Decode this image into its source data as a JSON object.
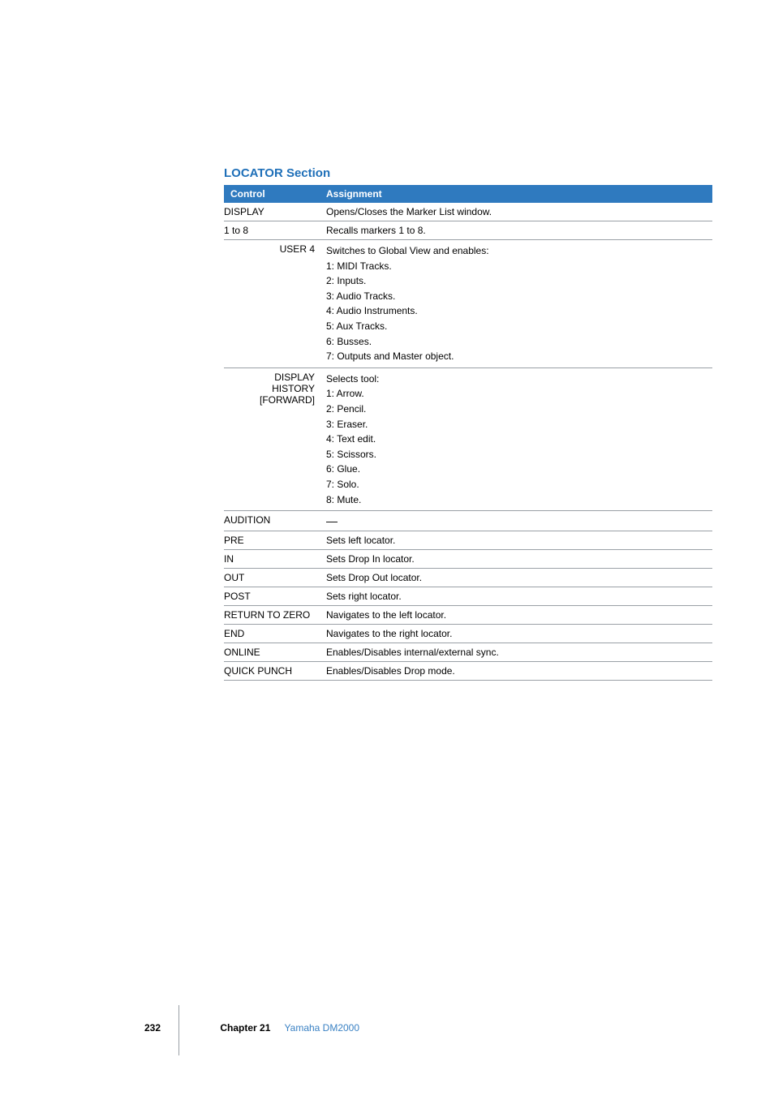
{
  "section": {
    "title": "LOCATOR Section",
    "title_color": "#1e6fb8",
    "title_fontsize": 15
  },
  "table": {
    "header_bg": "#2f7abf",
    "header_color": "#ffffff",
    "border_color": "#9aa0a6",
    "columns": [
      "Control",
      "Assignment"
    ],
    "rows": [
      {
        "control": "DISPLAY",
        "align": "left",
        "assignment": [
          "Opens/Closes the Marker List window."
        ]
      },
      {
        "control": "1 to 8",
        "align": "left",
        "assignment": [
          "Recalls markers 1 to 8."
        ]
      },
      {
        "control": "USER 4",
        "align": "right",
        "assignment": [
          "Switches to Global View and enables:",
          "1:  MIDI Tracks.",
          "2:  Inputs.",
          "3:  Audio Tracks.",
          "4:  Audio Instruments.",
          "5:  Aux Tracks.",
          "6:  Busses.",
          "7:  Outputs and Master object."
        ]
      },
      {
        "control": "DISPLAY HISTORY [FORWARD]",
        "align": "right",
        "assignment": [
          "Selects tool:",
          "1:  Arrow.",
          "2:  Pencil.",
          "3:  Eraser.",
          "4:  Text edit.",
          "5:  Scissors.",
          "6:  Glue.",
          "7:  Solo.",
          "8:  Mute."
        ]
      },
      {
        "control": "AUDITION",
        "align": "left",
        "assignment": [
          "—"
        ]
      },
      {
        "control": "PRE",
        "align": "left",
        "assignment": [
          "Sets left locator."
        ]
      },
      {
        "control": "IN",
        "align": "left",
        "assignment": [
          "Sets Drop In locator."
        ]
      },
      {
        "control": "OUT",
        "align": "left",
        "assignment": [
          "Sets Drop Out locator."
        ]
      },
      {
        "control": "POST",
        "align": "left",
        "assignment": [
          "Sets right locator."
        ]
      },
      {
        "control": "RETURN TO ZERO",
        "align": "left",
        "assignment": [
          "Navigates to the left locator."
        ]
      },
      {
        "control": "END",
        "align": "left",
        "assignment": [
          "Navigates to the right locator."
        ]
      },
      {
        "control": "ONLINE",
        "align": "left",
        "assignment": [
          "Enables/Disables internal/external sync."
        ]
      },
      {
        "control": "QUICK PUNCH",
        "align": "left",
        "assignment": [
          "Enables/Disables Drop mode."
        ]
      }
    ]
  },
  "footer": {
    "page": "232",
    "chapter_label": "Chapter 21",
    "chapter_title": "Yamaha DM2000",
    "chapter_title_color": "#3b82c4"
  }
}
